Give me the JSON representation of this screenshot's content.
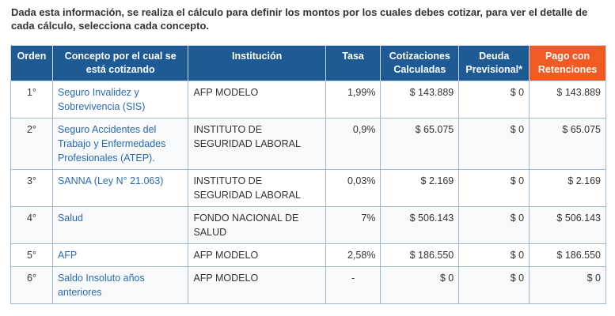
{
  "intro": "Dada esta información, se realiza el cálculo para definir los montos por los cuales debes cotizar, para ver el detalle de cada cálculo, selecciona cada concepto.",
  "headers": {
    "orden": "Orden",
    "concepto": "Concepto por el cual se está cotizando",
    "institucion": "Institución",
    "tasa": "Tasa",
    "cotizaciones": "Cotizaciones Calculadas",
    "deuda": "Deuda Previsional*",
    "pago": "Pago con Retenciones"
  },
  "rows": [
    {
      "orden": "1°",
      "concepto": "Seguro Invalidez y Sobrevivencia (SIS)",
      "institucion": "AFP MODELO",
      "tasa": "1,99%",
      "cotizaciones": "$ 143.889",
      "deuda": "$ 0",
      "pago": "$ 143.889"
    },
    {
      "orden": "2°",
      "concepto": "Seguro Accidentes del Trabajo y Enfermedades Profesionales (ATEP).",
      "institucion": "INSTITUTO DE SEGURIDAD LABORAL",
      "tasa": "0,9%",
      "cotizaciones": "$ 65.075",
      "deuda": "$ 0",
      "pago": "$ 65.075"
    },
    {
      "orden": "3°",
      "concepto": "SANNA (Ley N° 21.063)",
      "institucion": "INSTITUTO DE SEGURIDAD LABORAL",
      "tasa": "0,03%",
      "cotizaciones": "$ 2.169",
      "deuda": "$ 0",
      "pago": "$ 2.169"
    },
    {
      "orden": "4°",
      "concepto": "Salud",
      "institucion": "FONDO NACIONAL DE SALUD",
      "tasa": "7%",
      "cotizaciones": "$ 506.143",
      "deuda": "$ 0",
      "pago": "$ 506.143"
    },
    {
      "orden": "5°",
      "concepto": "AFP",
      "institucion": "AFP MODELO",
      "tasa": "2,58%",
      "cotizaciones": "$ 186.550",
      "deuda": "$ 0",
      "pago": "$ 186.550"
    },
    {
      "orden": "6°",
      "concepto": "Saldo Insoluto años anteriores",
      "institucion": "AFP MODELO",
      "tasa": "-",
      "cotizaciones": "$ 0",
      "deuda": "$ 0",
      "pago": "$ 0"
    }
  ]
}
